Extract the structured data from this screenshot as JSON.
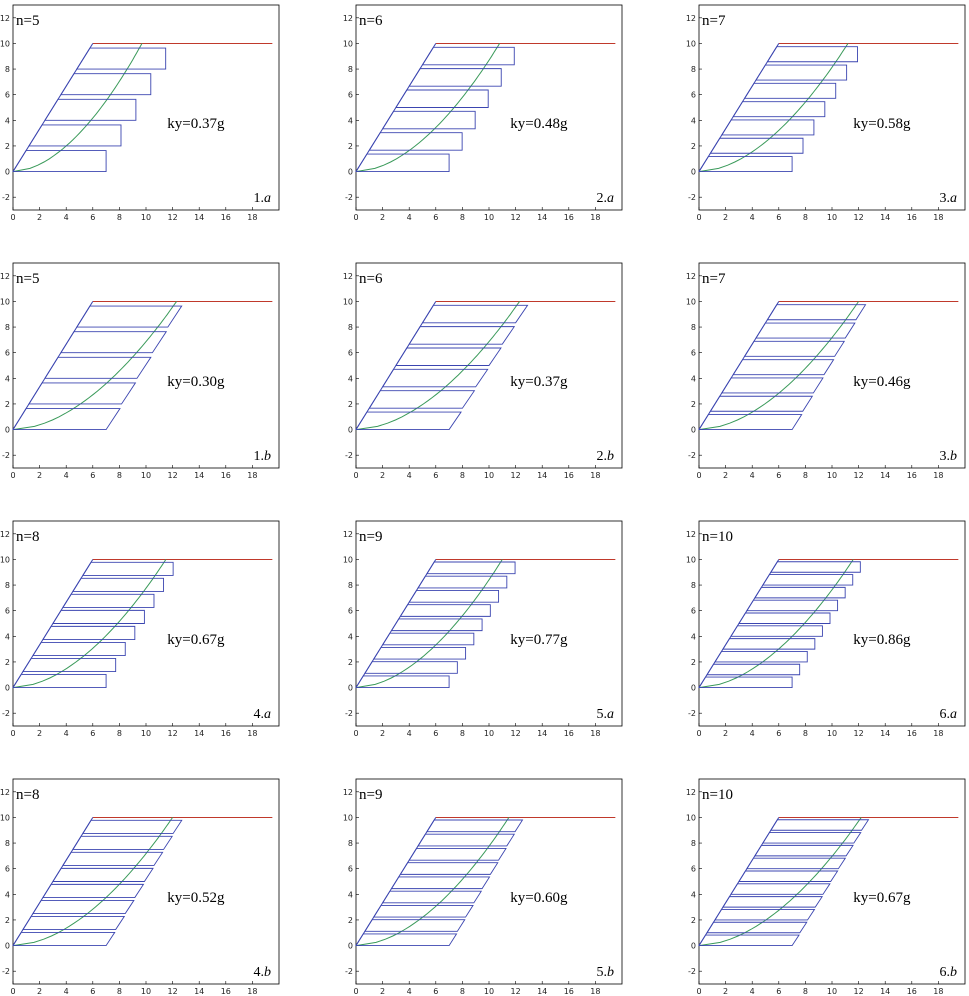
{
  "figure": {
    "panel_label_separator": ".",
    "colors": {
      "slope": "#3b45b0",
      "crest": "#c0392b",
      "slices": "#3b45b0",
      "slip_curve": "#3a9a5a",
      "frame": "#000000"
    }
  },
  "chart_data": [
    {
      "id": "1.a",
      "row": 0,
      "col": 0,
      "num": "1",
      "letter": "a",
      "n_text": "n=5",
      "n": 5,
      "ky_text": "ky=0.37g",
      "ky": 0.37,
      "type": "line",
      "xlim": [
        0,
        20
      ],
      "ylim": [
        -3,
        13
      ],
      "x_ticks": [
        "0",
        "2",
        "4",
        "6",
        "8",
        "10",
        "12",
        "14",
        "16",
        "18"
      ],
      "y_ticks": [
        "-2",
        "0",
        "2",
        "4",
        "6",
        "8",
        "10",
        "12"
      ],
      "slope": {
        "x": [
          0,
          6
        ],
        "y": [
          0,
          10
        ]
      },
      "crest": {
        "x": [
          6,
          19.5
        ],
        "y": [
          10,
          10
        ]
      },
      "slip_curve": {
        "toe_x": 0,
        "crest_x": 9.7
      },
      "slices": {
        "left_x0": 0,
        "left_x1": 6,
        "right_start": 7.0,
        "step": 1.12,
        "shape": "rect"
      }
    },
    {
      "id": "2.a",
      "row": 0,
      "col": 1,
      "num": "2",
      "letter": "a",
      "n_text": "n=6",
      "n": 6,
      "ky_text": "ky=0.48g",
      "ky": 0.48,
      "type": "line",
      "xlim": [
        0,
        20
      ],
      "ylim": [
        -3,
        13
      ],
      "x_ticks": [
        "0",
        "2",
        "4",
        "6",
        "8",
        "10",
        "12",
        "14",
        "16",
        "18"
      ],
      "y_ticks": [
        "-2",
        "0",
        "2",
        "4",
        "6",
        "8",
        "10",
        "12"
      ],
      "slope": {
        "x": [
          0,
          6
        ],
        "y": [
          0,
          10
        ]
      },
      "crest": {
        "x": [
          6,
          19.5
        ],
        "y": [
          10,
          10
        ]
      },
      "slip_curve": {
        "toe_x": 0,
        "crest_x": 10.8
      },
      "slices": {
        "left_x0": 0,
        "left_x1": 6,
        "right_start": 7.0,
        "step": 0.98,
        "shape": "rect"
      }
    },
    {
      "id": "3.a",
      "row": 0,
      "col": 2,
      "num": "3",
      "letter": "a",
      "n_text": "n=7",
      "n": 7,
      "ky_text": "ky=0.58g",
      "ky": 0.58,
      "type": "line",
      "xlim": [
        0,
        20
      ],
      "ylim": [
        -3,
        13
      ],
      "x_ticks": [
        "0",
        "2",
        "4",
        "6",
        "8",
        "10",
        "12",
        "14",
        "16",
        "18"
      ],
      "y_ticks": [
        "-2",
        "0",
        "2",
        "4",
        "6",
        "8",
        "10",
        "12"
      ],
      "slope": {
        "x": [
          0,
          6
        ],
        "y": [
          0,
          10
        ]
      },
      "crest": {
        "x": [
          6,
          19.5
        ],
        "y": [
          10,
          10
        ]
      },
      "slip_curve": {
        "toe_x": 0,
        "crest_x": 11.2
      },
      "slices": {
        "left_x0": 0,
        "left_x1": 6,
        "right_start": 7.0,
        "step": 0.82,
        "shape": "rect"
      }
    },
    {
      "id": "1.b",
      "row": 1,
      "col": 0,
      "num": "1",
      "letter": "b",
      "n_text": "n=5",
      "n": 5,
      "ky_text": "ky=0.30g",
      "ky": 0.3,
      "type": "line",
      "xlim": [
        0,
        20
      ],
      "ylim": [
        -3,
        13
      ],
      "x_ticks": [
        "0",
        "2",
        "4",
        "6",
        "8",
        "10",
        "12",
        "14",
        "16",
        "18"
      ],
      "y_ticks": [
        "-2",
        "0",
        "2",
        "4",
        "6",
        "8",
        "10",
        "12"
      ],
      "slope": {
        "x": [
          0,
          6
        ],
        "y": [
          0,
          10
        ]
      },
      "crest": {
        "x": [
          6,
          19.5
        ],
        "y": [
          10,
          10
        ]
      },
      "slip_curve": {
        "toe_x": 0,
        "crest_x": 12.3
      },
      "slices": {
        "left_x0": 0,
        "left_x1": 6,
        "right_start": 7.0,
        "step": 1.16,
        "shape": "taper"
      }
    },
    {
      "id": "2.b",
      "row": 1,
      "col": 1,
      "num": "2",
      "letter": "b",
      "n_text": "n=6",
      "n": 6,
      "ky_text": "ky=0.37g",
      "ky": 0.37,
      "type": "line",
      "xlim": [
        0,
        20
      ],
      "ylim": [
        -3,
        13
      ],
      "x_ticks": [
        "0",
        "2",
        "4",
        "6",
        "8",
        "10",
        "12",
        "14",
        "16",
        "18"
      ],
      "y_ticks": [
        "-2",
        "0",
        "2",
        "4",
        "6",
        "8",
        "10",
        "12"
      ],
      "slope": {
        "x": [
          0,
          6
        ],
        "y": [
          0,
          10
        ]
      },
      "crest": {
        "x": [
          6,
          19.5
        ],
        "y": [
          10,
          10
        ]
      },
      "slip_curve": {
        "toe_x": 0,
        "crest_x": 12.3
      },
      "slices": {
        "left_x0": 0,
        "left_x1": 6,
        "right_start": 7.0,
        "step": 1.0,
        "shape": "taper"
      }
    },
    {
      "id": "3.b",
      "row": 1,
      "col": 2,
      "num": "3",
      "letter": "b",
      "n_text": "n=7",
      "n": 7,
      "ky_text": "ky=0.46g",
      "ky": 0.46,
      "type": "line",
      "xlim": [
        0,
        20
      ],
      "ylim": [
        -3,
        13
      ],
      "x_ticks": [
        "0",
        "2",
        "4",
        "6",
        "8",
        "10",
        "12",
        "14",
        "16",
        "18"
      ],
      "y_ticks": [
        "-2",
        "0",
        "2",
        "4",
        "6",
        "8",
        "10",
        "12"
      ],
      "slope": {
        "x": [
          0,
          6
        ],
        "y": [
          0,
          10
        ]
      },
      "crest": {
        "x": [
          6,
          19.5
        ],
        "y": [
          10,
          10
        ]
      },
      "slip_curve": {
        "toe_x": 0,
        "crest_x": 12.0
      },
      "slices": {
        "left_x0": 0,
        "left_x1": 6,
        "right_start": 7.0,
        "step": 0.8,
        "shape": "taper"
      }
    },
    {
      "id": "4.a",
      "row": 2,
      "col": 0,
      "num": "4",
      "letter": "a",
      "n_text": "n=8",
      "n": 8,
      "ky_text": "ky=0.67g",
      "ky": 0.67,
      "type": "line",
      "xlim": [
        0,
        20
      ],
      "ylim": [
        -3,
        13
      ],
      "x_ticks": [
        "0",
        "2",
        "4",
        "6",
        "8",
        "10",
        "12",
        "14",
        "16",
        "18"
      ],
      "y_ticks": [
        "-2",
        "0",
        "2",
        "4",
        "6",
        "8",
        "10",
        "12"
      ],
      "slope": {
        "x": [
          0,
          6
        ],
        "y": [
          0,
          10
        ]
      },
      "crest": {
        "x": [
          6,
          19.5
        ],
        "y": [
          10,
          10
        ]
      },
      "slip_curve": {
        "toe_x": 0,
        "crest_x": 11.5
      },
      "slices": {
        "left_x0": 0,
        "left_x1": 6,
        "right_start": 7.0,
        "step": 0.72,
        "shape": "rect"
      }
    },
    {
      "id": "5.a",
      "row": 2,
      "col": 1,
      "num": "5",
      "letter": "a",
      "n_text": "n=9",
      "n": 9,
      "ky_text": "ky=0.77g",
      "ky": 0.77,
      "type": "line",
      "xlim": [
        0,
        20
      ],
      "ylim": [
        -3,
        13
      ],
      "x_ticks": [
        "0",
        "2",
        "4",
        "6",
        "8",
        "10",
        "12",
        "14",
        "16",
        "18"
      ],
      "y_ticks": [
        "-2",
        "0",
        "2",
        "4",
        "6",
        "8",
        "10",
        "12"
      ],
      "slope": {
        "x": [
          0,
          6
        ],
        "y": [
          0,
          10
        ]
      },
      "crest": {
        "x": [
          6,
          19.5
        ],
        "y": [
          10,
          10
        ]
      },
      "slip_curve": {
        "toe_x": 0,
        "crest_x": 11.0
      },
      "slices": {
        "left_x0": 0,
        "left_x1": 6,
        "right_start": 7.0,
        "step": 0.62,
        "shape": "rect"
      }
    },
    {
      "id": "6.a",
      "row": 2,
      "col": 2,
      "num": "6",
      "letter": "a",
      "n_text": "n=10",
      "n": 10,
      "ky_text": "ky=0.86g",
      "ky": 0.86,
      "type": "line",
      "xlim": [
        0,
        20
      ],
      "ylim": [
        -3,
        13
      ],
      "x_ticks": [
        "0",
        "2",
        "4",
        "6",
        "8",
        "10",
        "12",
        "14",
        "16",
        "18"
      ],
      "y_ticks": [
        "-2",
        "0",
        "2",
        "4",
        "6",
        "8",
        "10",
        "12"
      ],
      "slope": {
        "x": [
          0,
          6
        ],
        "y": [
          0,
          10
        ]
      },
      "crest": {
        "x": [
          6,
          19.5
        ],
        "y": [
          10,
          10
        ]
      },
      "slip_curve": {
        "toe_x": 0,
        "crest_x": 11.6
      },
      "slices": {
        "left_x0": 0,
        "left_x1": 6,
        "right_start": 7.0,
        "step": 0.57,
        "shape": "rect"
      }
    },
    {
      "id": "4.b",
      "row": 3,
      "col": 0,
      "num": "4",
      "letter": "b",
      "n_text": "n=8",
      "n": 8,
      "ky_text": "ky=0.52g",
      "ky": 0.52,
      "type": "line",
      "xlim": [
        0,
        20
      ],
      "ylim": [
        -3,
        13
      ],
      "x_ticks": [
        "0",
        "2",
        "4",
        "6",
        "8",
        "10",
        "12",
        "14",
        "16",
        "18"
      ],
      "y_ticks": [
        "-2",
        "0",
        "2",
        "4",
        "6",
        "8",
        "10",
        "12"
      ],
      "slope": {
        "x": [
          0,
          6
        ],
        "y": [
          0,
          10
        ]
      },
      "crest": {
        "x": [
          6,
          19.5
        ],
        "y": [
          10,
          10
        ]
      },
      "slip_curve": {
        "toe_x": 0,
        "crest_x": 12.0
      },
      "slices": {
        "left_x0": 0,
        "left_x1": 6,
        "right_start": 7.0,
        "step": 0.72,
        "shape": "taper"
      }
    },
    {
      "id": "5.b",
      "row": 3,
      "col": 1,
      "num": "5",
      "letter": "b",
      "n_text": "n=9",
      "n": 9,
      "ky_text": "ky=0.60g",
      "ky": 0.6,
      "type": "line",
      "xlim": [
        0,
        20
      ],
      "ylim": [
        -3,
        13
      ],
      "x_ticks": [
        "0",
        "2",
        "4",
        "6",
        "8",
        "10",
        "12",
        "14",
        "16",
        "18"
      ],
      "y_ticks": [
        "-2",
        "0",
        "2",
        "4",
        "6",
        "8",
        "10",
        "12"
      ],
      "slope": {
        "x": [
          0,
          6
        ],
        "y": [
          0,
          10
        ]
      },
      "crest": {
        "x": [
          6,
          19.5
        ],
        "y": [
          10,
          10
        ]
      },
      "slip_curve": {
        "toe_x": 0,
        "crest_x": 11.5
      },
      "slices": {
        "left_x0": 0,
        "left_x1": 6,
        "right_start": 7.0,
        "step": 0.62,
        "shape": "taper"
      }
    },
    {
      "id": "6.b",
      "row": 3,
      "col": 2,
      "num": "6",
      "letter": "b",
      "n_text": "n=10",
      "n": 10,
      "ky_text": "ky=0.67g",
      "ky": 0.67,
      "type": "line",
      "xlim": [
        0,
        20
      ],
      "ylim": [
        -3,
        13
      ],
      "x_ticks": [
        "0",
        "2",
        "4",
        "6",
        "8",
        "10",
        "12",
        "14",
        "16",
        "18"
      ],
      "y_ticks": [
        "-2",
        "0",
        "2",
        "4",
        "6",
        "8",
        "10",
        "12"
      ],
      "slope": {
        "x": [
          0,
          6
        ],
        "y": [
          0,
          10
        ]
      },
      "crest": {
        "x": [
          6,
          19.5
        ],
        "y": [
          10,
          10
        ]
      },
      "slip_curve": {
        "toe_x": 0,
        "crest_x": 12.2
      },
      "slices": {
        "left_x0": 0,
        "left_x1": 6,
        "right_start": 7.0,
        "step": 0.58,
        "shape": "taper"
      }
    }
  ]
}
